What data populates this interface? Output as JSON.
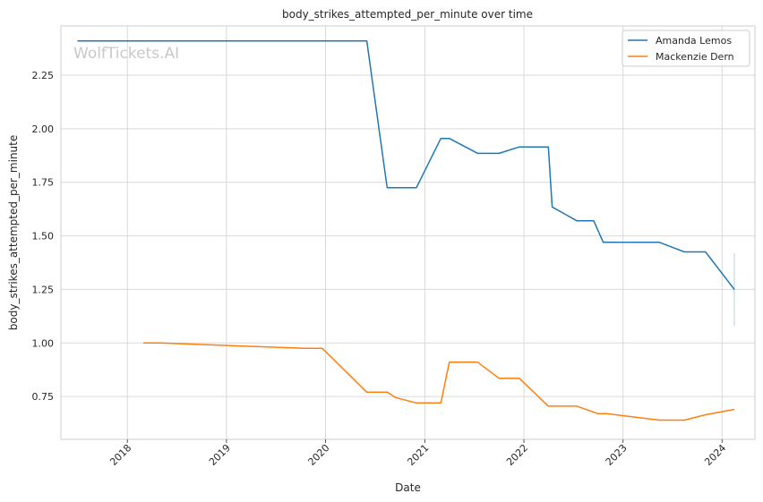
{
  "chart_data": {
    "type": "line",
    "title": "body_strikes_attempted_per_minute over time",
    "xlabel": "Date",
    "ylabel": "body_strikes_attempted_per_minute",
    "watermark": "WolfTickets.AI",
    "xlim": [
      "2017-05-01",
      "2024-05-01"
    ],
    "ylim": [
      0.55,
      2.48
    ],
    "x_ticks": [
      "2018-01-01",
      "2019-01-01",
      "2020-01-01",
      "2021-01-01",
      "2022-01-01",
      "2023-01-01",
      "2024-01-01"
    ],
    "x_tick_labels": [
      "2018",
      "2019",
      "2020",
      "2021",
      "2022",
      "2023",
      "2024"
    ],
    "y_ticks": [
      0.75,
      1.0,
      1.25,
      1.5,
      1.75,
      2.0,
      2.25
    ],
    "y_tick_labels": [
      "0.75",
      "1.00",
      "1.25",
      "1.50",
      "1.75",
      "2.00",
      "2.25"
    ],
    "grid": true,
    "legend_position": "top-right",
    "series": [
      {
        "name": "Amanda Lemos",
        "color": "#1f77b4",
        "x": [
          "2017-07-01",
          "2020-06-01",
          "2020-08-15",
          "2020-12-01",
          "2021-03-01",
          "2021-04-01",
          "2021-07-15",
          "2021-10-01",
          "2021-12-15",
          "2022-04-01",
          "2022-04-15",
          "2022-07-15",
          "2022-09-15",
          "2022-10-20",
          "2023-05-15",
          "2023-08-15",
          "2023-11-01",
          "2024-02-15"
        ],
        "values": [
          2.41,
          2.41,
          1.725,
          1.725,
          1.955,
          1.955,
          1.885,
          1.885,
          1.915,
          1.915,
          1.635,
          1.57,
          1.57,
          1.47,
          1.47,
          1.425,
          1.425,
          1.25
        ]
      },
      {
        "name": "Mackenzie Dern",
        "color": "#ff7f0e",
        "x": [
          "2018-03-01",
          "2018-05-01",
          "2019-10-15",
          "2019-12-20",
          "2020-06-01",
          "2020-08-15",
          "2020-09-15",
          "2020-12-01",
          "2021-03-01",
          "2021-04-01",
          "2021-07-15",
          "2021-10-01",
          "2021-12-15",
          "2022-04-01",
          "2022-07-15",
          "2022-10-01",
          "2022-11-01",
          "2023-05-15",
          "2023-08-15",
          "2023-11-01",
          "2024-02-15"
        ],
        "values": [
          1.0,
          1.0,
          0.975,
          0.975,
          0.77,
          0.77,
          0.745,
          0.72,
          0.72,
          0.91,
          0.91,
          0.835,
          0.835,
          0.705,
          0.705,
          0.67,
          0.67,
          0.64,
          0.64,
          0.665,
          0.69
        ]
      }
    ],
    "annotations": [
      {
        "type": "vertical-range",
        "x": "2024-02-15",
        "y_range": [
          1.08,
          1.42
        ],
        "color": "#1f77b4"
      }
    ]
  }
}
